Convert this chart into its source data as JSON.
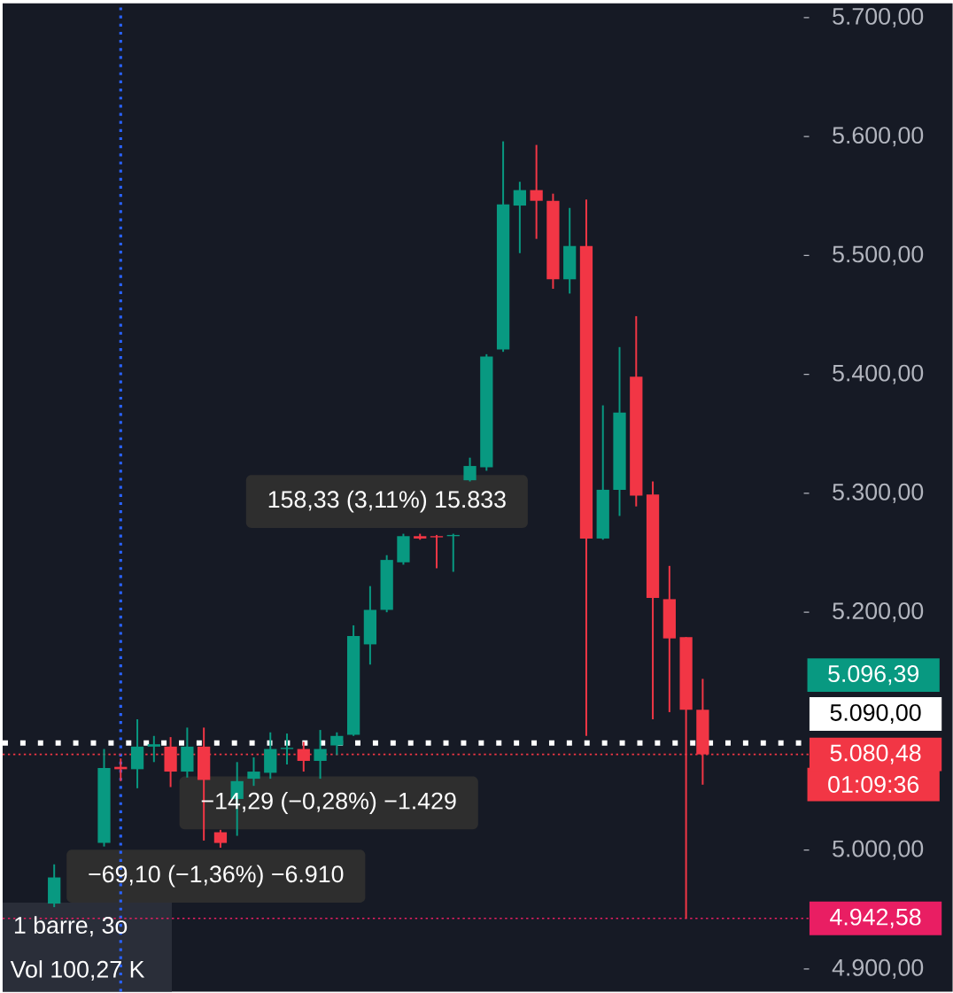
{
  "chart_data": {
    "type": "candlestick",
    "categories": [
      null,
      null,
      null,
      null,
      null,
      null,
      null,
      null,
      null,
      null,
      null,
      null,
      null,
      null,
      null,
      null,
      null,
      null,
      null,
      null,
      null,
      null,
      null,
      null,
      null,
      null,
      null,
      null,
      null,
      null,
      null,
      null,
      null,
      null,
      null,
      null,
      null,
      null,
      null,
      null
    ],
    "ohlc": [
      [
        4955,
        4988,
        4952,
        4977
      ],
      null,
      null,
      [
        5006,
        5085,
        5003,
        5069
      ],
      [
        5070,
        5077,
        5058,
        5068
      ],
      [
        5068,
        5110,
        5052,
        5087
      ],
      [
        5087,
        5096,
        5074,
        5089
      ],
      [
        5087,
        5095,
        5053,
        5066
      ],
      [
        5066,
        5103,
        5061,
        5087
      ],
      [
        5087,
        5103,
        5008,
        5059
      ],
      [
        5015,
        5017,
        5002,
        5006
      ],
      [
        5043,
        5074,
        5012,
        5058
      ],
      [
        5060,
        5078,
        5054,
        5066
      ],
      [
        5065,
        5099,
        5060,
        5085
      ],
      [
        5085,
        5098,
        5072,
        5086
      ],
      [
        5085,
        5091,
        5066,
        5075
      ],
      [
        5075,
        5101,
        5060,
        5085
      ],
      [
        5088,
        5099,
        5080,
        5096
      ],
      [
        5097,
        5189,
        5096,
        5180
      ],
      [
        5173,
        5222,
        5156,
        5202
      ],
      [
        5202,
        5248,
        5200,
        5244
      ],
      [
        5242,
        5266,
        5240,
        5264
      ],
      [
        5264,
        5266,
        5261,
        5262
      ],
      [
        5264,
        5265,
        5237,
        5263
      ],
      [
        5264,
        5266,
        5234,
        5265
      ],
      [
        5311,
        5330,
        5310,
        5323
      ],
      [
        5322,
        5417,
        5319,
        5415
      ],
      [
        5421,
        5596,
        5419,
        5543
      ],
      [
        5542,
        5562,
        5502,
        5555
      ],
      [
        5555,
        5593,
        5514,
        5546
      ],
      [
        5546,
        5552,
        5472,
        5480
      ],
      [
        5480,
        5540,
        5468,
        5508
      ],
      [
        5508,
        5547,
        5096,
        5262
      ],
      [
        5262,
        5374,
        5261,
        5303
      ],
      [
        5303,
        5423,
        5281,
        5368
      ],
      [
        5398,
        5449,
        5289,
        5298
      ],
      [
        5299,
        5310,
        5110,
        5212
      ],
      [
        5211,
        5239,
        5116,
        5178
      ],
      [
        5179,
        5179,
        4942.58,
        5118
      ],
      [
        5118,
        5144,
        5055,
        5080.48
      ]
    ],
    "colors": [
      "#089981",
      null,
      null,
      "#089981",
      "#f23645",
      "#089981",
      "#089981",
      "#f23645",
      "#089981",
      "#f23645",
      "#f23645",
      "#089981",
      "#089981",
      "#089981",
      "#089981",
      "#f23645",
      "#089981",
      "#089981",
      "#089981",
      "#089981",
      "#089981",
      "#089981",
      "#f23645",
      "#f23645",
      "#089981",
      "#089981",
      "#089981",
      "#089981",
      "#089981",
      "#f23645",
      "#f23645",
      "#089981",
      "#f23645",
      "#089981",
      "#089981",
      "#f23645",
      "#f23645",
      "#f23645",
      "#f23645",
      "#f23645"
    ],
    "ylim": [
      4881,
      5712
    ],
    "yticks": [
      {
        "value": 4900,
        "label": "4.900,00"
      },
      {
        "value": 5000,
        "label": "5.000,00"
      },
      {
        "value": 5200,
        "label": "5.200,00"
      },
      {
        "value": 5300,
        "label": "5.300,00"
      },
      {
        "value": 5400,
        "label": "5.400,00"
      },
      {
        "value": 5500,
        "label": "5.500,00"
      },
      {
        "value": 5600,
        "label": "5.600,00"
      },
      {
        "value": 5700,
        "label": "5.700,00"
      }
    ],
    "tick_labels": "y",
    "grid": false,
    "ref_lines": [
      {
        "axis": "y",
        "value": 5090,
        "label": "5.090,00",
        "color": "#ffffff",
        "line_style": "dotted"
      },
      {
        "axis": "y",
        "value": 5080.48,
        "label": "5.080,48",
        "color": "#f23645",
        "line_style": "dotted"
      },
      {
        "axis": "y",
        "value": 4942.58,
        "label": "4.942,58",
        "color": "#e91e63",
        "line_style": "dotted"
      }
    ],
    "annotations": [
      "158,33 (3,11%) 15.833",
      "−14,29 (−0,28%) −1.429",
      "−69,10 (−1,36%) −6.910",
      "01:09:36",
      "1 barre, 3o",
      "Vol 100,27 K",
      "5.096,39"
    ]
  }
}
